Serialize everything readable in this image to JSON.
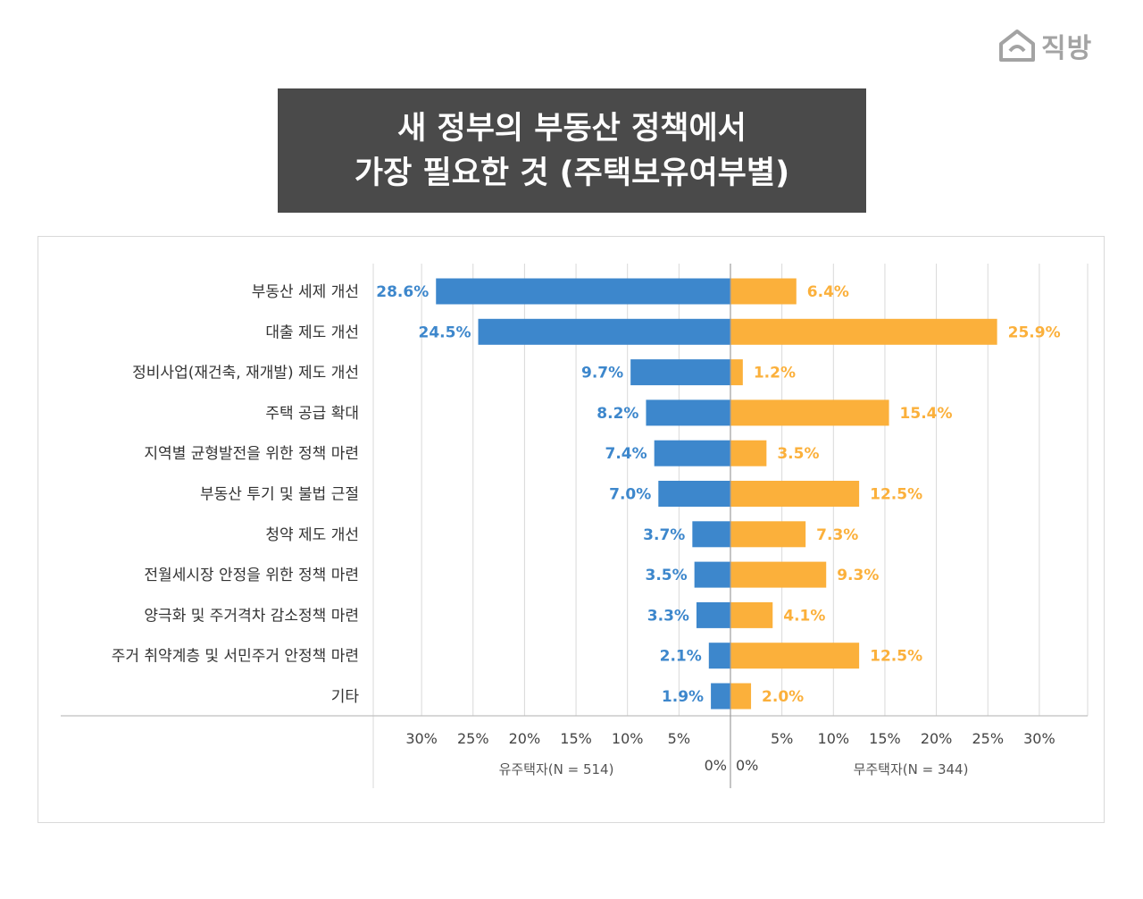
{
  "brand": {
    "logo_text": "직방",
    "logo_icon": "house-icon"
  },
  "title": {
    "line1": "새 정부의 부동산 정책에서",
    "line2": "가장 필요한 것 (주택보유여부별)"
  },
  "chart_data": {
    "type": "bar",
    "orientation": "horizontal-diverging",
    "unit": "%",
    "categories": [
      "부동산 세제 개선",
      "대출 제도 개선",
      "정비사업(재건축, 재개발) 제도 개선",
      "주택 공급 확대",
      "지역별 균형발전을 위한 정책 마련",
      "부동산 투기 및 불법 근절",
      "청약 제도 개선",
      "전월세시장 안정을 위한 정책 마련",
      "양극화 및 주거격차 감소정책 마련",
      "주거 취약계층 및 서민주거 안정책 마련",
      "기타"
    ],
    "series": [
      {
        "name": "유주택자(N = 514)",
        "side": "left",
        "color": "#3d87cc",
        "values": [
          28.6,
          24.5,
          9.7,
          8.2,
          7.4,
          7.0,
          3.7,
          3.5,
          3.3,
          2.1,
          1.9
        ],
        "labels": [
          "28.6%",
          "24.5%",
          "9.7%",
          "8.2%",
          "7.4%",
          "7.0%",
          "3.7%",
          "3.5%",
          "3.3%",
          "2.1%",
          "1.9%"
        ]
      },
      {
        "name": "무주택자(N = 344)",
        "side": "right",
        "color": "#fbb03b",
        "values": [
          6.4,
          25.9,
          1.2,
          15.4,
          3.5,
          12.5,
          7.3,
          9.3,
          4.1,
          12.5,
          2.0
        ],
        "labels": [
          "6.4%",
          "25.9%",
          "1.2%",
          "15.4%",
          "3.5%",
          "12.5%",
          "7.3%",
          "9.3%",
          "4.1%",
          "12.5%",
          "2.0%"
        ]
      }
    ],
    "xlim": [
      0,
      35
    ],
    "left_ticks": [
      "30%",
      "25%",
      "20%",
      "15%",
      "10%",
      "5%",
      "0%"
    ],
    "right_ticks": [
      "0%",
      "5%",
      "10%",
      "15%",
      "20%",
      "25%",
      "30%"
    ],
    "left_tick_values": [
      30,
      25,
      20,
      15,
      10,
      5,
      0
    ],
    "right_tick_values": [
      0,
      5,
      10,
      15,
      20,
      25,
      30
    ],
    "grid": true
  }
}
